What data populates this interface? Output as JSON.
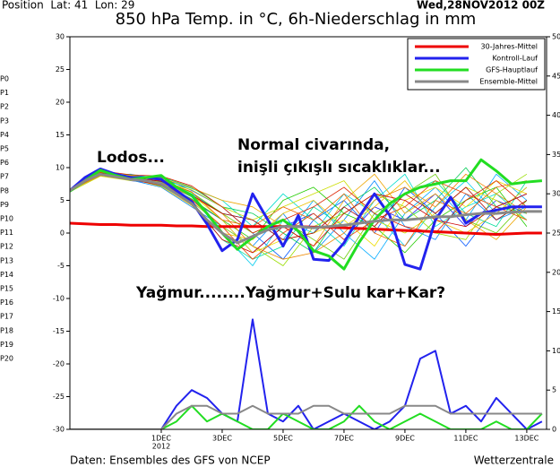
{
  "chart_data": {
    "type": "line",
    "header_left": "Position  Lat: 41  Lon: 29",
    "header_right": "Wed,28NOV2012 00Z",
    "title": "850 hPa Temp. in °C, 6h-Niederschlag in mm",
    "annotations": [
      {
        "text": "Lodos...",
        "color": "#ee2a00"
      },
      {
        "text": "Normal civarında,",
        "color": "#1a1aee"
      },
      {
        "text": "inişli çıkışlı sıcaklıklar...",
        "color": "#1a1aee"
      },
      {
        "text": "Yağmur........Yağmur+Sulu kar+Kar?",
        "color": "#000000"
      }
    ],
    "footer_left": "Daten: Ensembles des GFS von NCEP",
    "footer_right": "Wetterzentrale",
    "xlim": [
      0,
      15.65
    ],
    "xticks": [
      {
        "value": 3,
        "label": "1DEC"
      },
      {
        "value": 5,
        "label": "3DEC"
      },
      {
        "value": 7,
        "label": "5DEC"
      },
      {
        "value": 9,
        "label": "7DEC"
      },
      {
        "value": 11,
        "label": "9DEC"
      },
      {
        "value": 13,
        "label": "11DEC"
      },
      {
        "value": 15,
        "label": "13DEC"
      }
    ],
    "x_year": "2012",
    "ylim": [
      -30,
      30
    ],
    "yticks": [
      -30,
      -25,
      -20,
      -15,
      -10,
      -5,
      0,
      5,
      10,
      15,
      20,
      25,
      30
    ],
    "y2lim": [
      0,
      50
    ],
    "y2ticks": [
      0,
      5,
      10,
      15,
      20,
      25,
      30,
      35,
      40,
      45,
      50
    ],
    "legend": "upper right",
    "x": [
      0,
      0.5,
      1,
      1.5,
      2,
      2.5,
      3,
      3.5,
      4,
      4.5,
      5,
      5.5,
      6,
      6.5,
      7,
      7.5,
      8,
      8.5,
      9,
      9.5,
      10,
      10.5,
      11,
      11.5,
      12,
      12.5,
      13,
      13.5,
      14,
      14.5,
      15,
      15.5
    ],
    "member_x": [
      0,
      1,
      2,
      3,
      4,
      5,
      6,
      7,
      8,
      9,
      10,
      11,
      12,
      13,
      14,
      15
    ],
    "members": [
      {
        "name": "P0",
        "color": "#2222ff",
        "values": [
          6.5,
          9.5,
          8,
          7.5,
          5,
          2,
          -3,
          1,
          3,
          -1,
          4,
          2,
          6,
          1,
          5,
          3
        ]
      },
      {
        "name": "P1",
        "color": "#0055ff",
        "values": [
          6.4,
          9,
          8.8,
          8.5,
          6.5,
          4,
          0,
          -4,
          2,
          5,
          0,
          7,
          3,
          -2,
          4,
          6
        ]
      },
      {
        "name": "P2",
        "color": "#0088ff",
        "values": [
          6.6,
          9.2,
          8.1,
          7,
          4,
          1,
          -2,
          3,
          -3,
          2,
          8,
          1,
          -1,
          6,
          2,
          4
        ]
      },
      {
        "name": "P3",
        "color": "#00aaff",
        "values": [
          6.5,
          8.8,
          9,
          8,
          6,
          3,
          2,
          -1,
          5,
          0,
          -4,
          3,
          7,
          2,
          9,
          5
        ]
      },
      {
        "name": "P4",
        "color": "#00ccee",
        "values": [
          6.3,
          9.4,
          8.3,
          7.8,
          5.5,
          0,
          -5,
          2,
          0,
          6,
          3,
          -2,
          4,
          8,
          3,
          7
        ]
      },
      {
        "name": "P5",
        "color": "#00ddcc",
        "values": [
          6.5,
          9.1,
          8.6,
          8.2,
          6.8,
          5,
          1,
          6,
          2,
          -2,
          5,
          9,
          1,
          4,
          6,
          2
        ]
      },
      {
        "name": "P6",
        "color": "#00dd99",
        "values": [
          6.7,
          9.6,
          8.4,
          7.2,
          4.5,
          -1,
          -4,
          -2,
          4,
          1,
          2,
          6,
          8,
          3,
          1,
          8
        ]
      },
      {
        "name": "P7",
        "color": "#00cc55",
        "values": [
          6.5,
          8.9,
          8.7,
          8.6,
          7,
          4,
          3,
          0,
          -3,
          4,
          7,
          2,
          5,
          10,
          4,
          3
        ]
      },
      {
        "name": "P8",
        "color": "#22cc00",
        "values": [
          6.4,
          9.3,
          8.2,
          7.6,
          5.2,
          2,
          -1,
          5,
          7,
          3,
          1,
          -3,
          2,
          5,
          7,
          1
        ]
      },
      {
        "name": "P9",
        "color": "#66cc00",
        "values": [
          6.6,
          9,
          8.9,
          8.1,
          6.2,
          3,
          0,
          2,
          -1,
          -4,
          3,
          6,
          9,
          2,
          0,
          5
        ]
      },
      {
        "name": "P10",
        "color": "#99dd00",
        "values": [
          6.5,
          9.5,
          8.5,
          7.4,
          4.8,
          1,
          -2,
          -5,
          1,
          3,
          6,
          4,
          0,
          -1,
          6,
          9
        ]
      },
      {
        "name": "P11",
        "color": "#ccdd00",
        "values": [
          6.3,
          8.7,
          8,
          7.9,
          6.6,
          4,
          2,
          4,
          6,
          8,
          2,
          0,
          3,
          7,
          5,
          2
        ]
      },
      {
        "name": "P12",
        "color": "#eedd00",
        "values": [
          6.5,
          9.2,
          8.8,
          8.3,
          5.9,
          2,
          -3,
          -1,
          0,
          2,
          -2,
          5,
          7,
          4,
          8,
          6
        ]
      },
      {
        "name": "P13",
        "color": "#eec000",
        "values": [
          6.6,
          9.4,
          8.3,
          7.1,
          4.2,
          0,
          -1,
          3,
          5,
          1,
          4,
          8,
          2,
          0,
          3,
          7
        ]
      },
      {
        "name": "P14",
        "color": "#eea500",
        "values": [
          6.4,
          9,
          8.6,
          8.4,
          6.9,
          5,
          4,
          1,
          -2,
          5,
          9,
          3,
          6,
          2,
          -1,
          4
        ]
      },
      {
        "name": "P15",
        "color": "#ee8800",
        "values": [
          6.5,
          8.8,
          8.1,
          7.7,
          5.6,
          3,
          -2,
          -4,
          -3,
          0,
          5,
          7,
          4,
          9,
          6,
          3
        ]
      },
      {
        "name": "P16",
        "color": "#ee6600",
        "values": [
          6.7,
          9.3,
          8.7,
          8,
          6.3,
          2,
          1,
          4,
          2,
          6,
          0,
          -2,
          5,
          3,
          7,
          8
        ]
      },
      {
        "name": "P17",
        "color": "#ee4400",
        "values": [
          6.5,
          9.1,
          8.4,
          7.5,
          5.1,
          1,
          -4,
          0,
          3,
          -1,
          2,
          4,
          8,
          6,
          4,
          2
        ]
      },
      {
        "name": "P18",
        "color": "#dd2200",
        "values": [
          6.3,
          9.5,
          8.9,
          8.7,
          7.2,
          4,
          0,
          2,
          4,
          7,
          3,
          1,
          0,
          5,
          8,
          4
        ]
      },
      {
        "name": "P19",
        "color": "#cc0000",
        "values": [
          6.6,
          9,
          8.2,
          7.3,
          4.6,
          -1,
          -3,
          1,
          -2,
          3,
          6,
          5,
          2,
          1,
          4,
          6
        ]
      },
      {
        "name": "P20",
        "color": "#aa0000",
        "values": [
          6.5,
          9.2,
          8.5,
          7.9,
          5.8,
          3,
          2,
          -1,
          0,
          4,
          1,
          6,
          3,
          7,
          2,
          5
        ]
      }
    ],
    "series": [
      {
        "name": "30-Jahres-Mittel",
        "color": "#ee0000",
        "values": [
          1.5,
          1.4,
          1.3,
          1.3,
          1.2,
          1.2,
          1.2,
          1.1,
          1.1,
          1.0,
          1.0,
          1.0,
          1.0,
          1.0,
          1.0,
          1.0,
          0.9,
          0.9,
          0.8,
          0.7,
          0.6,
          0.5,
          0.4,
          0.3,
          0.2,
          0.1,
          0,
          -0.1,
          -0.2,
          -0.1,
          0,
          0
        ]
      },
      {
        "name": "Kontroll-Lauf",
        "color": "#2222ee",
        "values": [
          6.5,
          8.5,
          9.8,
          9,
          8.5,
          8.5,
          8.2,
          6.5,
          4.8,
          1.4,
          -2.7,
          -1,
          6,
          2,
          -2,
          2.7,
          -4,
          -4.2,
          -1.5,
          2.5,
          6,
          2.7,
          -4.8,
          -5.5,
          2,
          5.5,
          1.5,
          3,
          3.5,
          4,
          4,
          4
        ]
      },
      {
        "name": "GFS-Hauptlauf",
        "color": "#22dd22",
        "values": [
          6.4,
          8,
          9.6,
          8.8,
          8.2,
          8.5,
          8.8,
          7,
          5.8,
          3,
          0,
          -2.5,
          -0.7,
          1,
          2,
          0.3,
          -2.7,
          -3.5,
          -5.5,
          -1.4,
          2,
          4.5,
          6,
          7,
          7.5,
          8,
          8,
          11.2,
          9.5,
          7.5,
          7.8,
          8
        ]
      },
      {
        "name": "Ensemble-Mittel",
        "color": "#888888",
        "values": [
          6.5,
          8,
          9,
          8.6,
          8.2,
          8,
          7.5,
          6,
          4.5,
          2,
          0,
          -1.5,
          -0.5,
          0.5,
          1,
          1,
          0.8,
          1,
          1.2,
          1.5,
          1.8,
          2,
          2,
          2.2,
          2.5,
          2.5,
          2.8,
          3,
          3,
          3.2,
          3.3,
          3.3
        ]
      }
    ],
    "precip_series": [
      {
        "color": "#2222ee",
        "axis": "y2",
        "values": [
          0,
          0,
          0,
          0,
          0,
          0,
          0,
          3,
          5,
          4,
          2,
          1,
          14,
          2,
          1,
          3,
          0,
          1,
          2,
          1,
          0,
          1,
          3,
          9,
          10,
          2,
          3,
          1,
          4,
          2,
          0,
          1
        ]
      },
      {
        "color": "#22dd22",
        "axis": "y2",
        "values": [
          0,
          0,
          0,
          0,
          0,
          0,
          0,
          1,
          3,
          1,
          2,
          1,
          0,
          0,
          2,
          1,
          0,
          0,
          1,
          3,
          1,
          0,
          1,
          2,
          1,
          0,
          0,
          0,
          1,
          0,
          0,
          2
        ]
      },
      {
        "color": "#888888",
        "axis": "y2",
        "values": [
          0,
          0,
          0,
          0,
          0,
          0,
          0,
          2,
          3,
          3,
          2,
          2,
          3,
          2,
          2,
          2,
          3,
          3,
          2,
          2,
          2,
          2,
          3,
          3,
          3,
          2,
          2,
          2,
          2,
          2,
          2,
          2
        ]
      }
    ]
  }
}
